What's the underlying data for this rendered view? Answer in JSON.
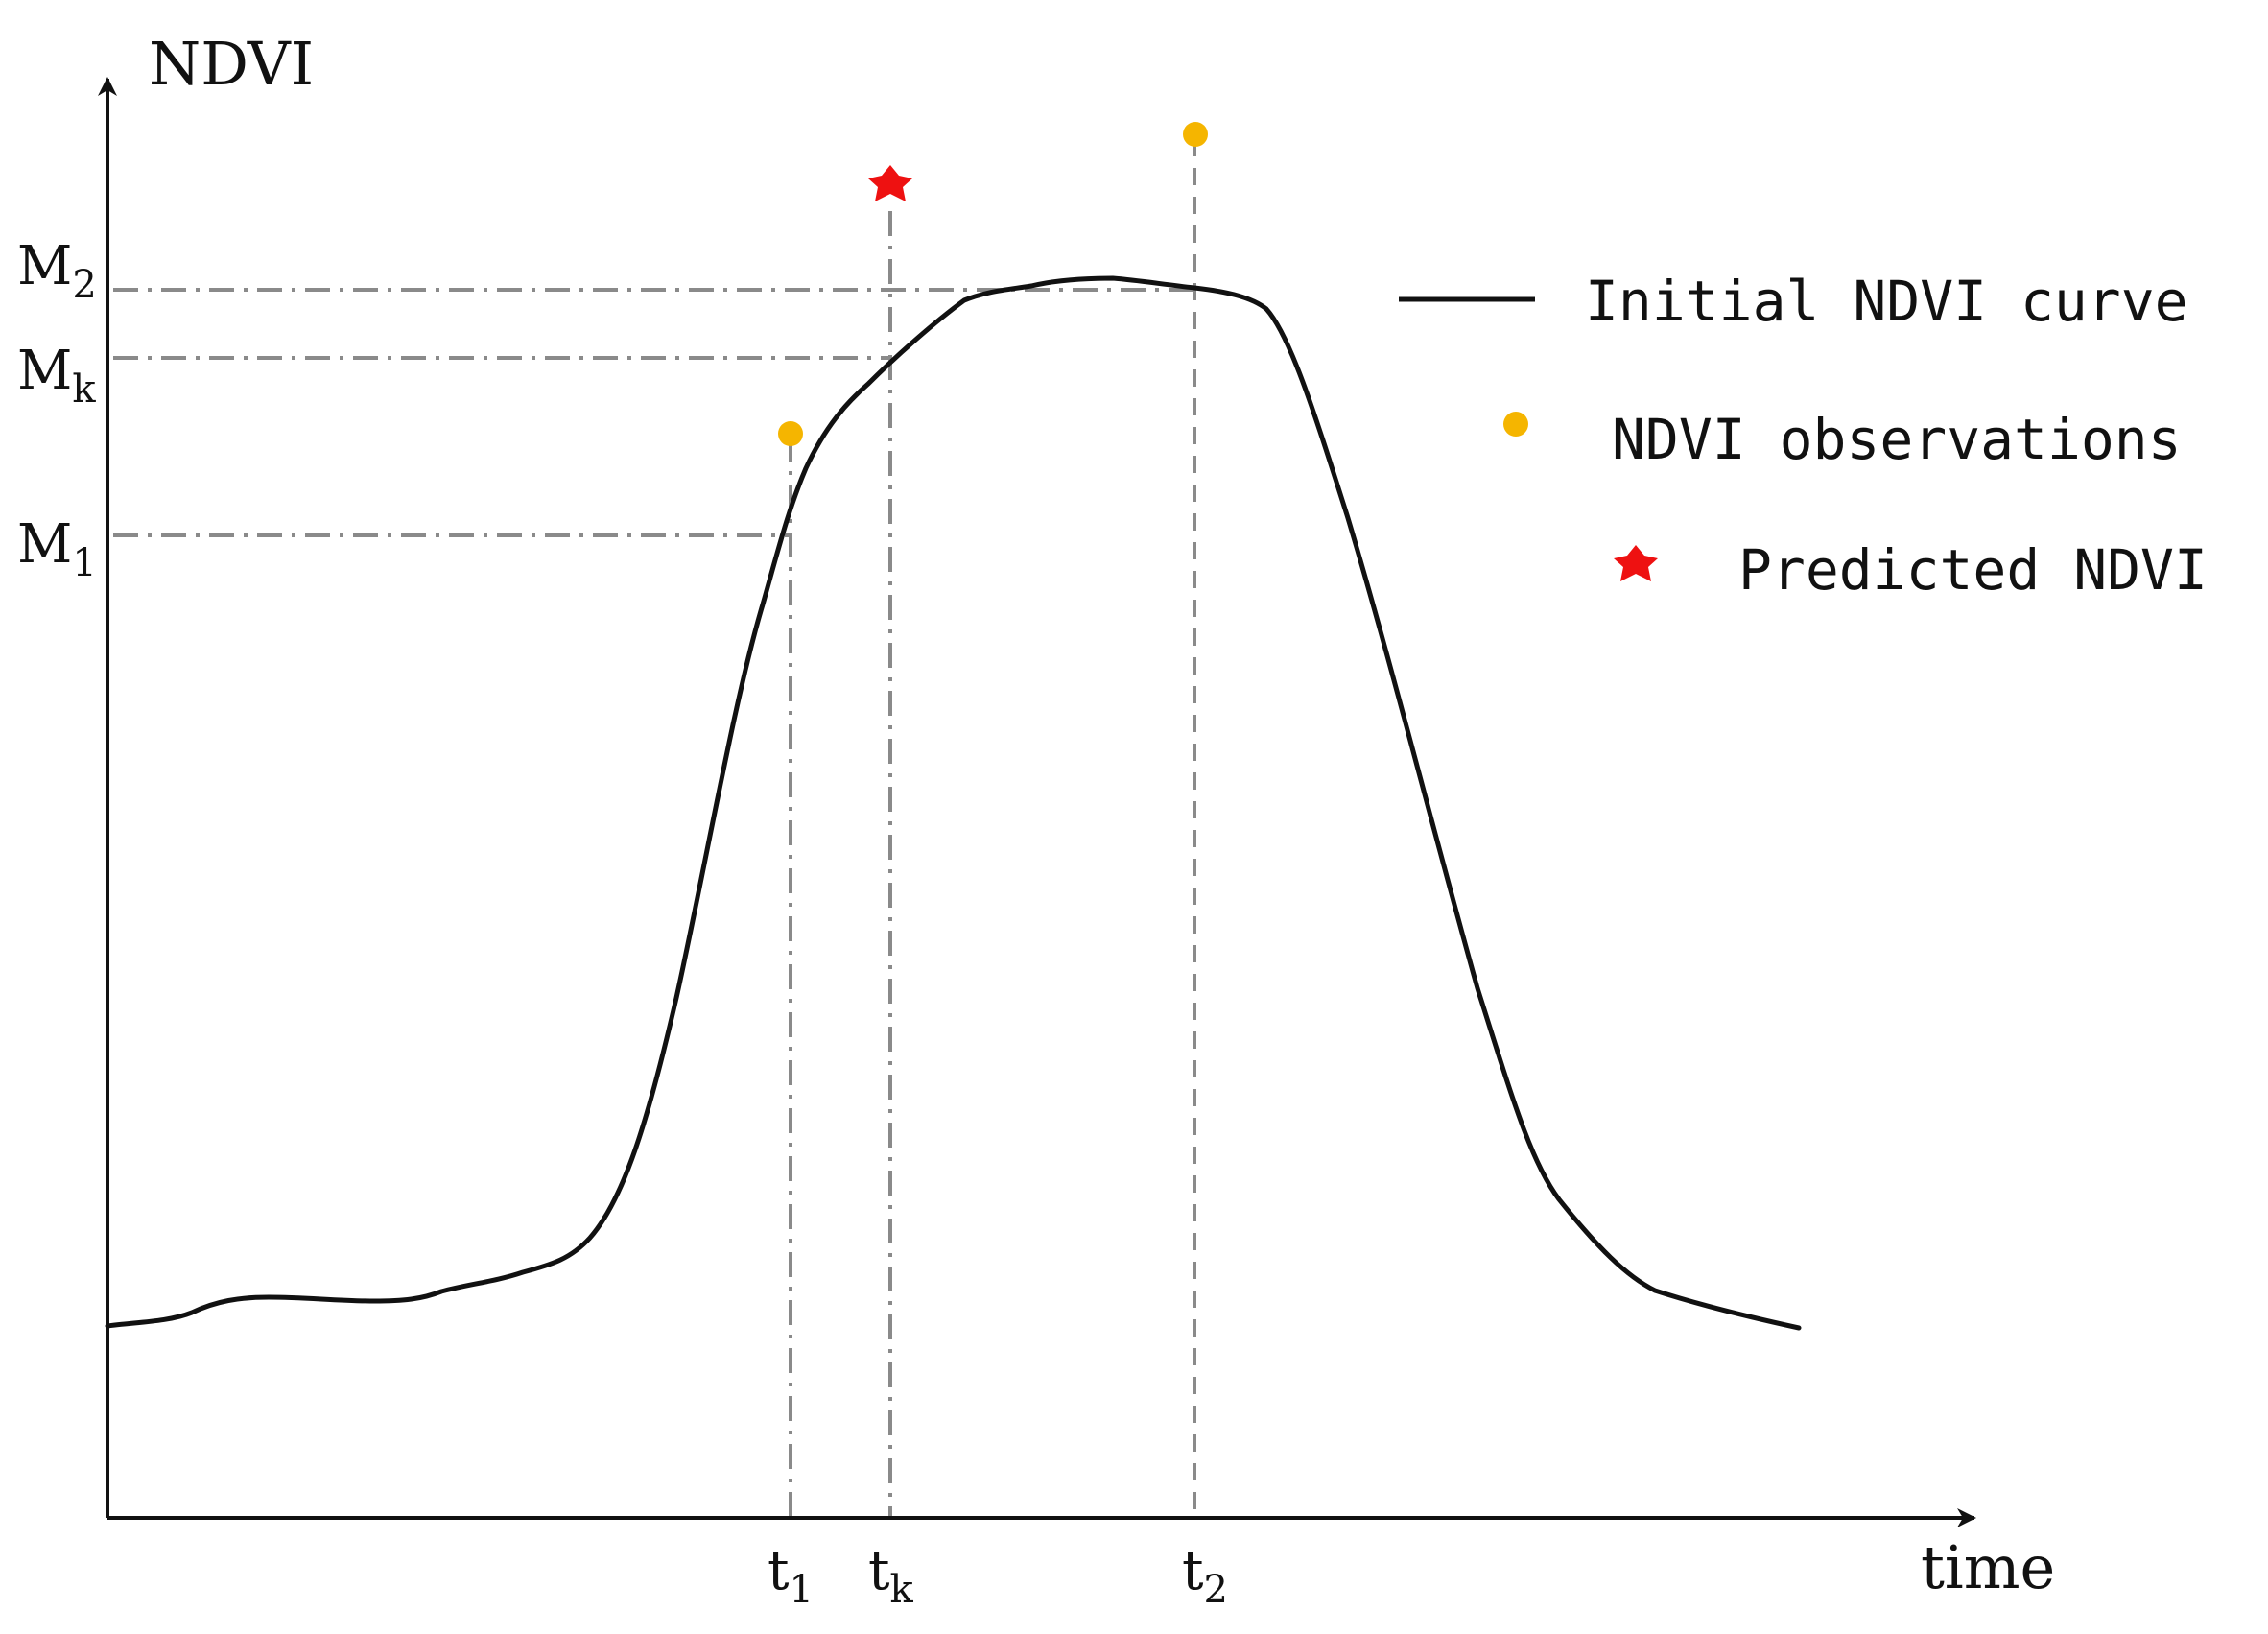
{
  "axes": {
    "y_label": "NDVI",
    "x_label": "time"
  },
  "y_ticks": [
    {
      "id": "m2",
      "main": "M",
      "sub": "2"
    },
    {
      "id": "mk",
      "main": "M",
      "sub": "k"
    },
    {
      "id": "m1",
      "main": "M",
      "sub": "1"
    }
  ],
  "x_ticks": [
    {
      "id": "t1",
      "main": "t",
      "sub": "1"
    },
    {
      "id": "tk",
      "main": "t",
      "sub": "k"
    },
    {
      "id": "t2",
      "main": "t",
      "sub": "2"
    }
  ],
  "legend": {
    "curve_label": "Initial NDVI curve",
    "observations_label": "NDVI observations",
    "predicted_label": "Predicted NDVI",
    "curve_icon": "line-segment-icon",
    "observation_icon": "dot-icon",
    "predicted_icon": "star-icon"
  },
  "colors": {
    "curve": "#111111",
    "observation": "#f5b500",
    "predicted": "#ee1111",
    "guide": "#8a8a8a"
  }
}
